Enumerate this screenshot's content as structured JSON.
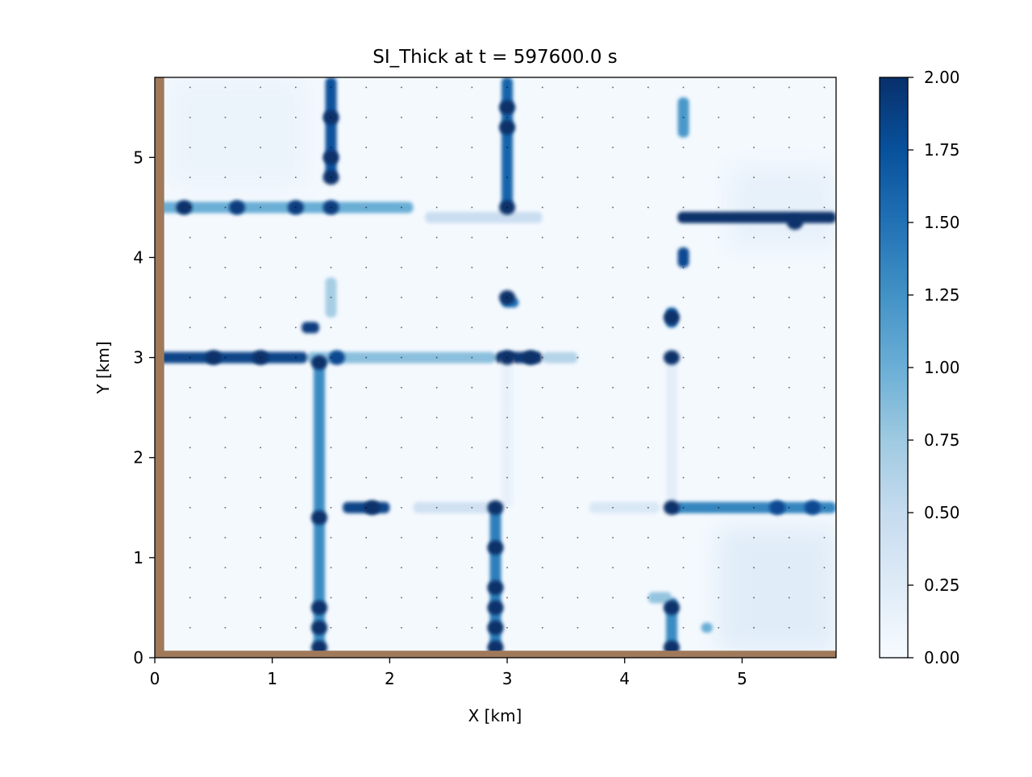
{
  "chart_data": {
    "type": "heatmap",
    "title": "SI_Thick at t = 597600.0 s",
    "xlabel": "X [km]",
    "ylabel": "Y [km]",
    "xlim": [
      0,
      5.8
    ],
    "ylim": [
      0,
      5.8
    ],
    "xticks": [
      0,
      1,
      2,
      3,
      4,
      5
    ],
    "xtick_labels": [
      "0",
      "1",
      "2",
      "3",
      "4",
      "5"
    ],
    "yticks": [
      0,
      1,
      2,
      3,
      4,
      5
    ],
    "ytick_labels": [
      "0",
      "1",
      "2",
      "3",
      "4",
      "5"
    ],
    "colormap": "Blues",
    "colormap_stops": [
      "#f7fbff",
      "#deebf7",
      "#c6dbef",
      "#9ecae1",
      "#6baed6",
      "#4292c6",
      "#2171b5",
      "#08519c",
      "#08306b"
    ],
    "land_color": "#a0795a",
    "colorbar": {
      "min": 0.0,
      "max": 2.0,
      "ticks": [
        0.0,
        0.25,
        0.5,
        0.75,
        1.0,
        1.25,
        1.5,
        1.75,
        2.0
      ],
      "tick_labels": [
        "0.00",
        "0.25",
        "0.50",
        "0.75",
        "1.00",
        "1.25",
        "1.50",
        "1.75",
        "2.00"
      ]
    },
    "land": [
      {
        "x0": 0.0,
        "x1": 0.08,
        "y0": 0.0,
        "y1": 5.8
      },
      {
        "x0": 0.0,
        "x1": 5.8,
        "y0": 0.0,
        "y1": 0.07
      }
    ],
    "background_patches": [
      {
        "x0": 0.1,
        "x1": 1.3,
        "y0": 4.7,
        "y1": 5.8,
        "value": 0.12
      },
      {
        "x0": 4.8,
        "x1": 5.8,
        "y0": 0.07,
        "y1": 1.3,
        "value": 0.25
      },
      {
        "x0": 4.9,
        "x1": 5.8,
        "y0": 4.1,
        "y1": 4.9,
        "value": 0.18
      }
    ],
    "segments": [
      {
        "x0": 1.5,
        "x1": 1.5,
        "y0": 4.8,
        "y1": 5.8,
        "value": 1.75
      },
      {
        "x0": 3.0,
        "x1": 3.0,
        "y0": 4.5,
        "y1": 5.8,
        "value": 1.6
      },
      {
        "x0": 4.5,
        "x1": 4.5,
        "y0": 5.2,
        "y1": 5.6,
        "value": 1.2
      },
      {
        "x0": 0.0,
        "x1": 2.2,
        "y0": 4.5,
        "y1": 4.5,
        "value": 1.0
      },
      {
        "x0": 2.3,
        "x1": 3.3,
        "y0": 4.4,
        "y1": 4.4,
        "value": 0.45
      },
      {
        "x0": 4.45,
        "x1": 5.8,
        "y0": 4.4,
        "y1": 4.4,
        "value": 2.0
      },
      {
        "x0": 4.5,
        "x1": 4.5,
        "y0": 3.9,
        "y1": 4.1,
        "value": 1.8
      },
      {
        "x0": 1.5,
        "x1": 1.5,
        "y0": 3.4,
        "y1": 3.8,
        "value": 0.7
      },
      {
        "x0": 1.25,
        "x1": 1.4,
        "y0": 3.3,
        "y1": 3.3,
        "value": 1.9
      },
      {
        "x0": 3.0,
        "x1": 3.05,
        "y0": 3.5,
        "y1": 3.6,
        "value": 1.5
      },
      {
        "x0": 4.4,
        "x1": 4.4,
        "y0": 3.3,
        "y1": 3.5,
        "value": 1.6
      },
      {
        "x0": 0.0,
        "x1": 1.3,
        "y0": 3.0,
        "y1": 3.0,
        "value": 1.85
      },
      {
        "x0": 1.3,
        "x1": 2.9,
        "y0": 3.0,
        "y1": 3.0,
        "value": 0.85
      },
      {
        "x0": 2.9,
        "x1": 3.3,
        "y0": 3.0,
        "y1": 3.0,
        "value": 1.95
      },
      {
        "x0": 3.3,
        "x1": 3.6,
        "y0": 3.0,
        "y1": 3.0,
        "value": 0.6
      },
      {
        "x0": 1.4,
        "x1": 1.4,
        "y0": 0.07,
        "y1": 3.0,
        "value": 1.3
      },
      {
        "x0": 1.6,
        "x1": 2.0,
        "y0": 1.5,
        "y1": 1.5,
        "value": 1.85
      },
      {
        "x0": 2.2,
        "x1": 2.9,
        "y0": 1.5,
        "y1": 1.5,
        "value": 0.4
      },
      {
        "x0": 2.9,
        "x1": 2.9,
        "y0": 0.07,
        "y1": 1.5,
        "value": 1.4
      },
      {
        "x0": 3.7,
        "x1": 4.3,
        "y0": 1.5,
        "y1": 1.5,
        "value": 0.3
      },
      {
        "x0": 4.4,
        "x1": 5.8,
        "y0": 1.5,
        "y1": 1.5,
        "value": 1.35
      },
      {
        "x0": 4.4,
        "x1": 4.4,
        "y0": 0.07,
        "y1": 0.6,
        "value": 1.3
      },
      {
        "x0": 4.4,
        "x1": 4.4,
        "y0": 1.5,
        "y1": 3.0,
        "value": 0.2
      },
      {
        "x0": 3.0,
        "x1": 3.0,
        "y0": 1.5,
        "y1": 3.0,
        "value": 0.15
      },
      {
        "x0": 4.2,
        "x1": 4.4,
        "y0": 0.6,
        "y1": 0.6,
        "value": 0.8
      },
      {
        "x0": 4.7,
        "x1": 4.7,
        "y0": 0.25,
        "y1": 0.35,
        "value": 1.0
      }
    ],
    "blobs": [
      {
        "x": 0.25,
        "y": 4.5,
        "value": 2.0
      },
      {
        "x": 0.7,
        "y": 4.5,
        "value": 1.9
      },
      {
        "x": 1.2,
        "y": 4.5,
        "value": 1.9
      },
      {
        "x": 1.5,
        "y": 4.5,
        "value": 1.9
      },
      {
        "x": 3.0,
        "y": 4.5,
        "value": 2.0
      },
      {
        "x": 1.5,
        "y": 5.4,
        "value": 2.0
      },
      {
        "x": 1.5,
        "y": 5.0,
        "value": 2.0
      },
      {
        "x": 1.5,
        "y": 4.8,
        "value": 2.0
      },
      {
        "x": 3.0,
        "y": 5.5,
        "value": 2.0
      },
      {
        "x": 3.0,
        "y": 5.3,
        "value": 2.0
      },
      {
        "x": 5.45,
        "y": 4.35,
        "value": 2.0
      },
      {
        "x": 3.0,
        "y": 3.6,
        "value": 2.0
      },
      {
        "x": 1.4,
        "y": 2.95,
        "value": 2.0
      },
      {
        "x": 1.55,
        "y": 3.0,
        "value": 1.8
      },
      {
        "x": 3.0,
        "y": 3.0,
        "value": 2.0
      },
      {
        "x": 3.2,
        "y": 3.0,
        "value": 2.0
      },
      {
        "x": 4.4,
        "y": 3.0,
        "value": 2.0
      },
      {
        "x": 0.5,
        "y": 3.0,
        "value": 2.0
      },
      {
        "x": 0.9,
        "y": 3.0,
        "value": 2.0
      },
      {
        "x": 2.9,
        "y": 1.5,
        "value": 2.0
      },
      {
        "x": 4.4,
        "y": 1.5,
        "value": 2.0
      },
      {
        "x": 5.3,
        "y": 1.5,
        "value": 1.8
      },
      {
        "x": 5.6,
        "y": 1.5,
        "value": 1.8
      },
      {
        "x": 1.4,
        "y": 1.4,
        "value": 2.0
      },
      {
        "x": 1.4,
        "y": 0.5,
        "value": 2.0
      },
      {
        "x": 1.4,
        "y": 0.3,
        "value": 2.0
      },
      {
        "x": 1.4,
        "y": 0.1,
        "value": 2.0
      },
      {
        "x": 2.9,
        "y": 1.1,
        "value": 2.0
      },
      {
        "x": 2.9,
        "y": 0.7,
        "value": 2.0
      },
      {
        "x": 2.9,
        "y": 0.5,
        "value": 2.0
      },
      {
        "x": 2.9,
        "y": 0.3,
        "value": 2.0
      },
      {
        "x": 2.9,
        "y": 0.1,
        "value": 2.0
      },
      {
        "x": 4.4,
        "y": 0.5,
        "value": 2.0
      },
      {
        "x": 4.4,
        "y": 0.1,
        "value": 2.0
      },
      {
        "x": 4.4,
        "y": 3.4,
        "value": 2.0
      },
      {
        "x": 1.85,
        "y": 1.5,
        "value": 2.0
      }
    ],
    "arrow_grid": {
      "x0": 0.3,
      "dx": 0.3,
      "y0": 0.3,
      "dy": 0.3
    }
  }
}
